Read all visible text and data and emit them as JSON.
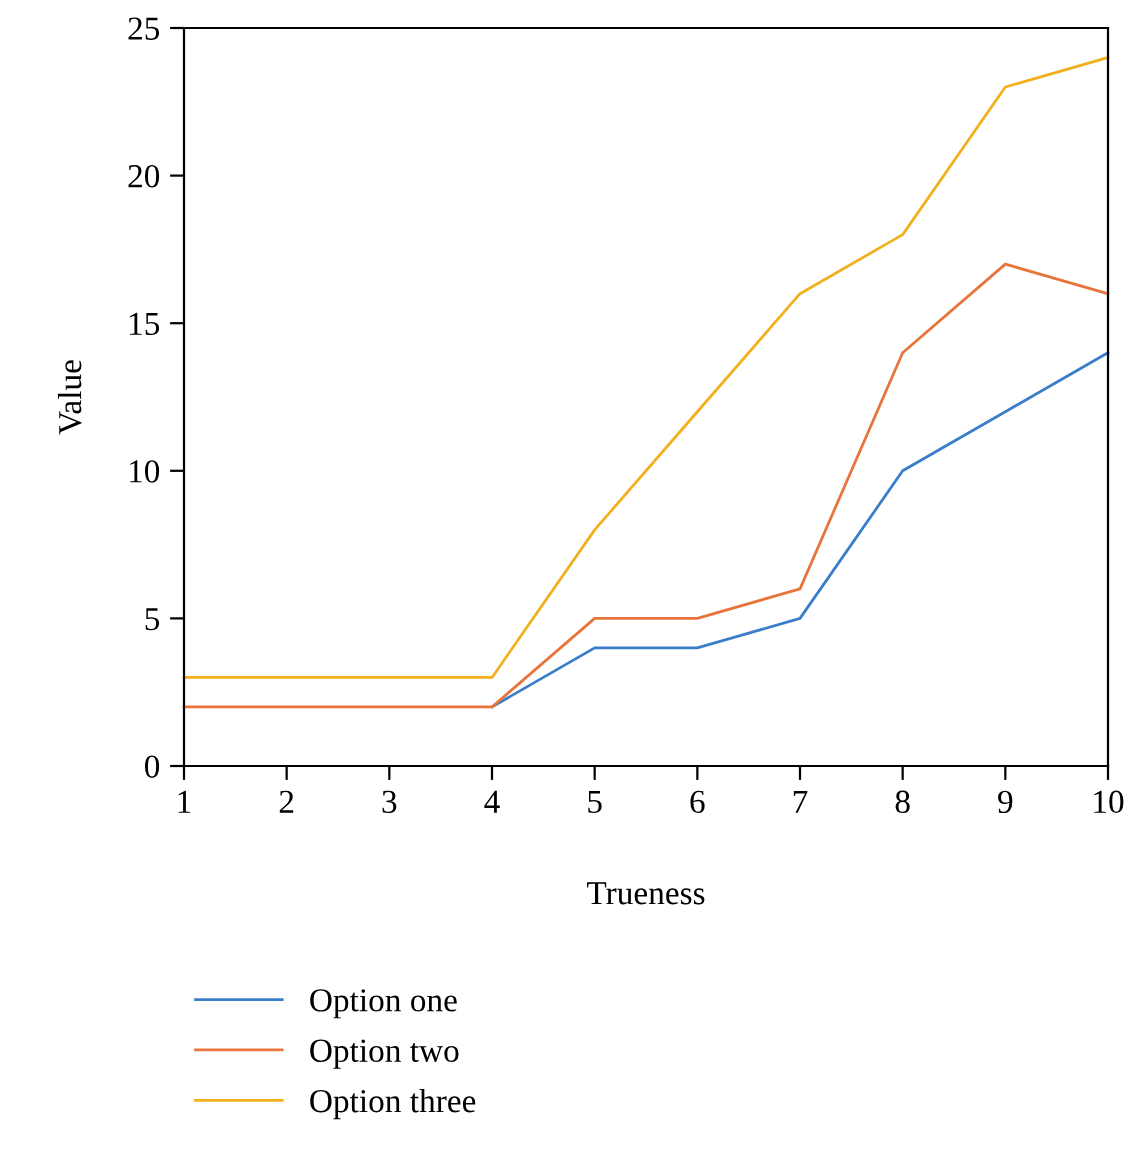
{
  "chart_data": {
    "type": "line",
    "xlabel": "Trueness",
    "ylabel": "Value",
    "x": [
      1,
      2,
      3,
      4,
      5,
      6,
      7,
      8,
      9,
      10
    ],
    "series": [
      {
        "name": "Option one",
        "color": "#3a7dc9",
        "values": [
          null,
          null,
          null,
          2,
          4,
          4,
          5,
          10,
          12,
          14
        ]
      },
      {
        "name": "Option two",
        "color": "#e8743b",
        "values": [
          2,
          2,
          2,
          2,
          5,
          5,
          6,
          14,
          17,
          16
        ]
      },
      {
        "name": "Option three",
        "color": "#f2b01e",
        "values": [
          3,
          3,
          3,
          3,
          8,
          12,
          16,
          18,
          23,
          24
        ]
      }
    ],
    "xlim": [
      1,
      10
    ],
    "xticks": [
      1,
      2,
      3,
      4,
      5,
      6,
      7,
      8,
      9,
      10
    ],
    "ylim": [
      0,
      25
    ],
    "yticks": [
      0,
      5,
      10,
      15,
      20,
      25
    ],
    "grid": false,
    "legend": "bottom",
    "marker": "none",
    "line_style": "solid"
  }
}
